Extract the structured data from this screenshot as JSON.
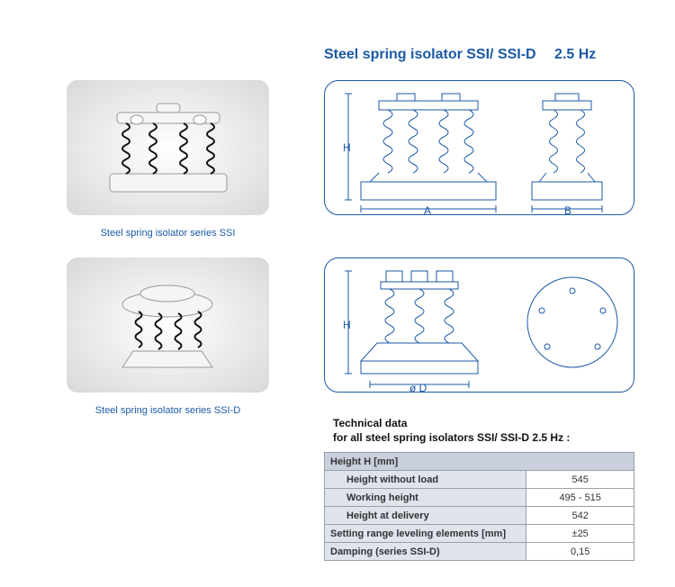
{
  "title": "Steel spring isolator SSI/ SSI-D  2.5 Hz",
  "captions": {
    "ssi": "Steel spring isolator series SSI",
    "ssid": "Steel spring isolator series SSI-D"
  },
  "diagrams": {
    "labels": {
      "H": "H",
      "A": "A",
      "B": "B",
      "D": "ø D"
    },
    "stroke": "#1b5aa6",
    "stroke_width": 1,
    "bg": "#ffffff"
  },
  "photos": {
    "bg_gradient_inner": "#ffffff",
    "bg_gradient_mid": "#e6e8ea",
    "bg_gradient_outer": "#d6d8da",
    "spring_color": "#111111",
    "plate_color": "#f4f5f6"
  },
  "tech": {
    "heading_l1": "Technical data",
    "heading_l2": "for all steel spring isolators SSI/ SSI-D 2.5 Hz :",
    "rows": [
      {
        "type": "hdr",
        "label": "Height H [mm]",
        "value": ""
      },
      {
        "type": "sub",
        "label": "Height without load",
        "value": "545"
      },
      {
        "type": "sub",
        "label": "Working height",
        "value": "495 - 515"
      },
      {
        "type": "sub",
        "label": "Height at delivery",
        "value": "542"
      },
      {
        "type": "label",
        "label": "Setting range leveling elements [mm]",
        "value": "±25"
      },
      {
        "type": "label",
        "label": "Damping (series SSI-D)",
        "value": "0,15"
      }
    ]
  },
  "colors": {
    "brand_blue": "#1b5aa6",
    "table_header_bg": "#c9cfdd",
    "table_row_bg": "#dfe3ec",
    "table_border": "#9aa0a8",
    "text": "#111111"
  },
  "typography": {
    "title_fontsize_pt": 12,
    "caption_fontsize_pt": 8,
    "table_fontsize_pt": 8,
    "font_family": "Arial"
  }
}
